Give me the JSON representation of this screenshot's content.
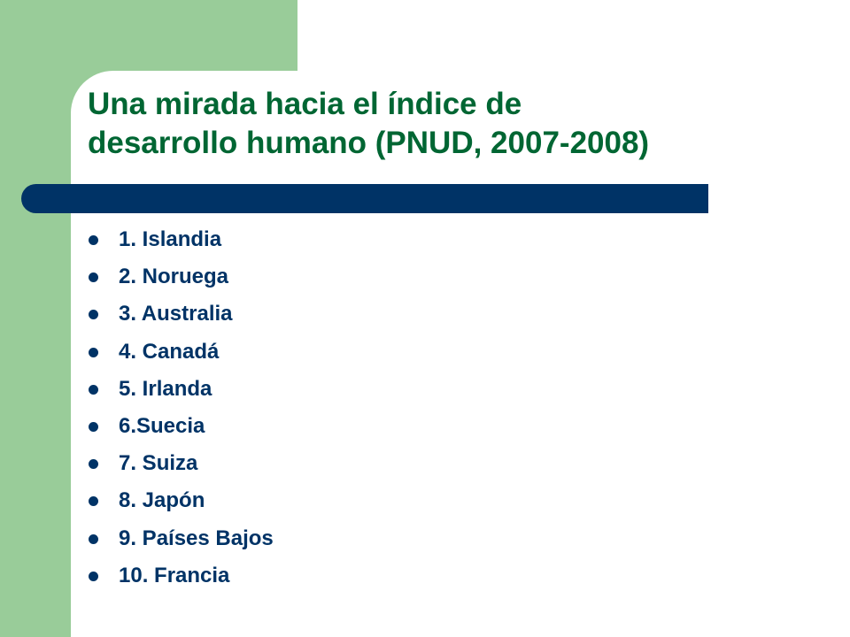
{
  "slide": {
    "title_line1": "Una mirada hacia el índice de",
    "title_line2": "desarrollo humano (PNUD, 2007-2008)",
    "items": [
      "1. Islandia",
      "2. Noruega",
      "3. Australia",
      "4. Canadá",
      "5. Irlanda",
      "6.Suecia",
      "7. Suiza",
      "8. Japón",
      "9. Países Bajos",
      "10. Francia"
    ]
  },
  "colors": {
    "accent_green": "#99cc99",
    "title_green": "#006633",
    "navy": "#003366",
    "background": "#ffffff"
  }
}
